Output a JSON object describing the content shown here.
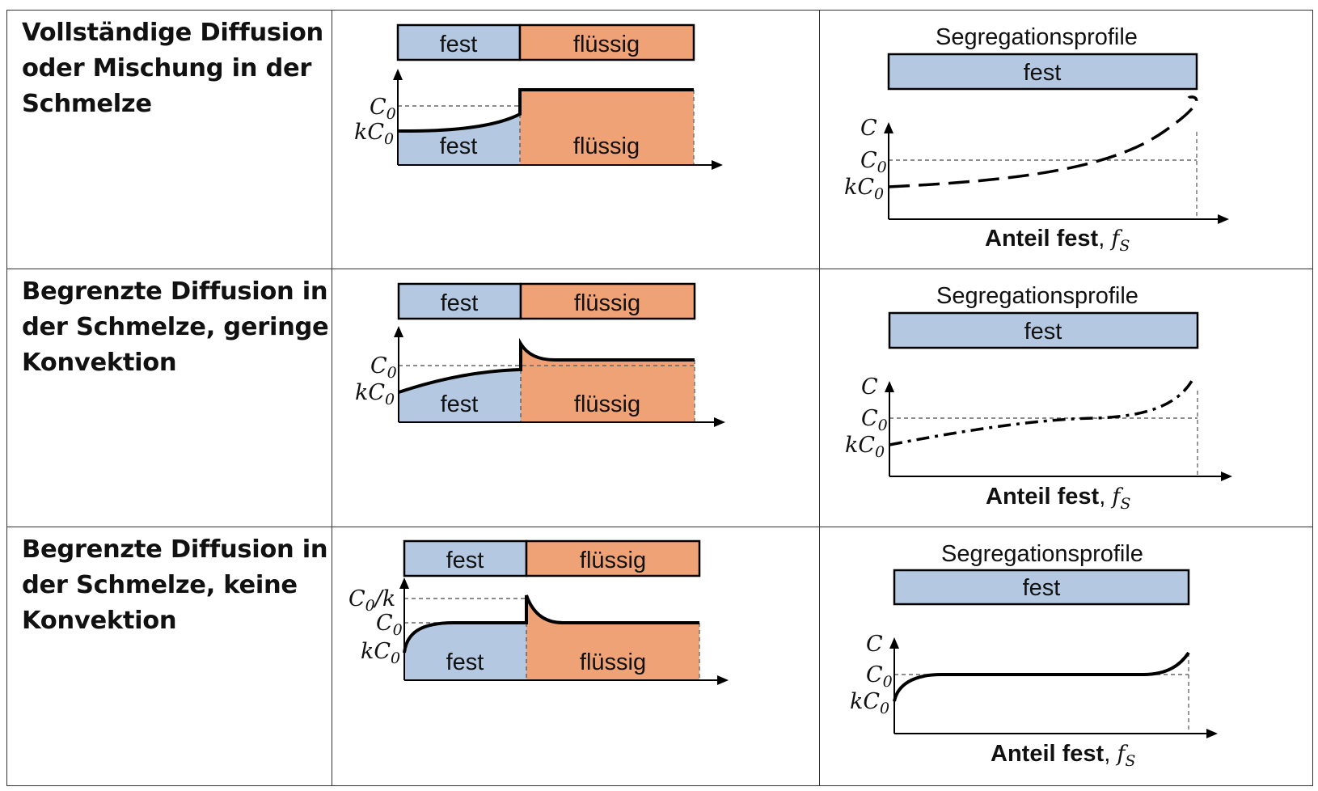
{
  "colors": {
    "solid": "#b4c8e1",
    "liquid": "#f0a277",
    "line": "#000000",
    "dashed": "#555555"
  },
  "rows": [
    {
      "label": "Vollständige Diffusion\noder Mischung in der\nSchmelze",
      "bar_solid": "fest",
      "bar_liquid": "flüssig",
      "plot_solid": "fest",
      "plot_liquid": "flüssig",
      "ylabels": {
        "c0": "C",
        "c0_sub": "0",
        "kc0": "kC",
        "kc0_sub": "0"
      },
      "profile_title": "Segregationsprofile",
      "profile_bar": "fest",
      "profile_ylabels": {
        "c": "C",
        "c0": "C",
        "c0_sub": "0",
        "kc0": "kC",
        "kc0_sub": "0"
      },
      "profile_xlabel": "Anteil fest",
      "profile_xsym": "f",
      "profile_xsym_sub": "S"
    },
    {
      "label": "Begrenzte Diffusion in\nder Schmelze, geringe\nKonvektion",
      "bar_solid": "fest",
      "bar_liquid": "flüssig",
      "plot_solid": "fest",
      "plot_liquid": "flüssig",
      "ylabels": {
        "c0": "C",
        "c0_sub": "0",
        "kc0": "kC",
        "kc0_sub": "0"
      },
      "profile_title": "Segregationsprofile",
      "profile_bar": "fest",
      "profile_ylabels": {
        "c": "C",
        "c0": "C",
        "c0_sub": "0",
        "kc0": "kC",
        "kc0_sub": "0"
      },
      "profile_xlabel": "Anteil fest",
      "profile_xsym": "f",
      "profile_xsym_sub": "S"
    },
    {
      "label": "Begrenzte Diffusion in\nder Schmelze, keine\nKonvektion",
      "bar_solid": "fest",
      "bar_liquid": "flüssig",
      "plot_solid": "fest",
      "plot_liquid": "flüssig",
      "ylabels": {
        "c0k": "C",
        "c0k_sub": "0",
        "c0k_tail": "/k",
        "c0": "C",
        "c0_sub": "0",
        "kc0": "kC",
        "kc0_sub": "0"
      },
      "profile_title": "Segregationsprofile",
      "profile_bar": "fest",
      "profile_ylabels": {
        "c": "C",
        "c0": "C",
        "c0_sub": "0",
        "kc0": "kC",
        "kc0_sub": "0"
      },
      "profile_xlabel": "Anteil fest",
      "profile_xsym": "f",
      "profile_xsym_sub": "S"
    }
  ]
}
